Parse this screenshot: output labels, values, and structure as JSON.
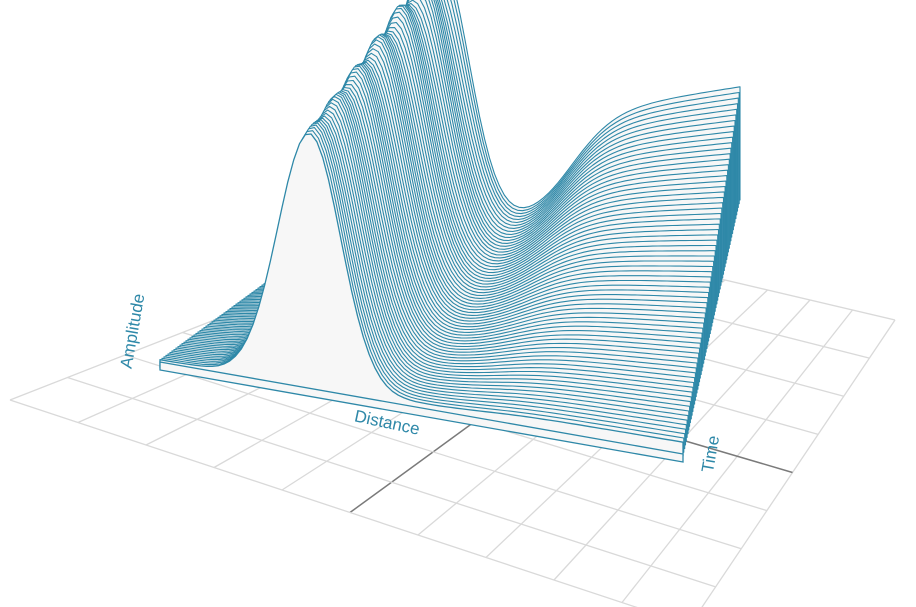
{
  "chart_data": {
    "type": "surface-waterfall",
    "xlabel": "Distance",
    "ylabel": "Amplitude",
    "zlabel": "Time",
    "grid": true,
    "slice_count": 70,
    "series_color": "#2e88a8",
    "fill_color": "#f7f7f7",
    "grid_color": "#d9d9d9",
    "axis_color": "#7a7a7a"
  }
}
